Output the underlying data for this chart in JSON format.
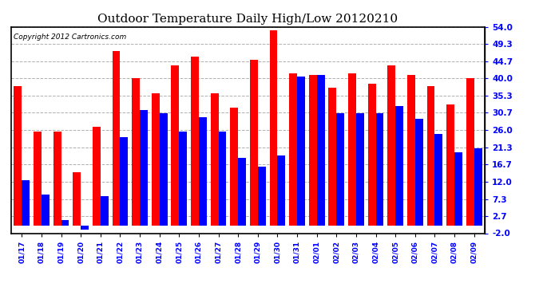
{
  "title": "Outdoor Temperature Daily High/Low 20120210",
  "copyright": "Copyright 2012 Cartronics.com",
  "yticks": [
    54.0,
    49.3,
    44.7,
    40.0,
    35.3,
    30.7,
    26.0,
    21.3,
    16.7,
    12.0,
    7.3,
    2.7,
    -2.0
  ],
  "ylim": [
    -2.0,
    54.0
  ],
  "dates": [
    "01/17",
    "01/18",
    "01/19",
    "01/20",
    "01/21",
    "01/22",
    "01/23",
    "01/24",
    "01/25",
    "01/26",
    "01/27",
    "01/28",
    "01/29",
    "01/30",
    "01/31",
    "02/01",
    "02/02",
    "02/03",
    "02/04",
    "02/05",
    "02/06",
    "02/07",
    "02/08",
    "02/09"
  ],
  "highs": [
    38.0,
    25.5,
    25.5,
    14.5,
    27.0,
    47.5,
    40.0,
    36.0,
    43.5,
    46.0,
    36.0,
    32.0,
    45.0,
    53.0,
    41.5,
    41.0,
    37.5,
    41.5,
    38.5,
    43.5,
    41.0,
    38.0,
    33.0,
    40.0
  ],
  "lows": [
    12.5,
    8.5,
    1.5,
    -1.0,
    8.0,
    24.0,
    31.5,
    30.5,
    25.5,
    29.5,
    25.5,
    18.5,
    16.0,
    19.0,
    40.5,
    41.0,
    30.5,
    30.5,
    30.5,
    32.5,
    29.0,
    25.0,
    20.0,
    21.0
  ],
  "high_color": "#ff0000",
  "low_color": "#0000ff",
  "background_color": "#ffffff",
  "grid_color": "#b0b0b0",
  "title_fontsize": 11,
  "bar_width": 0.4,
  "figure_bg": "#ffffff"
}
